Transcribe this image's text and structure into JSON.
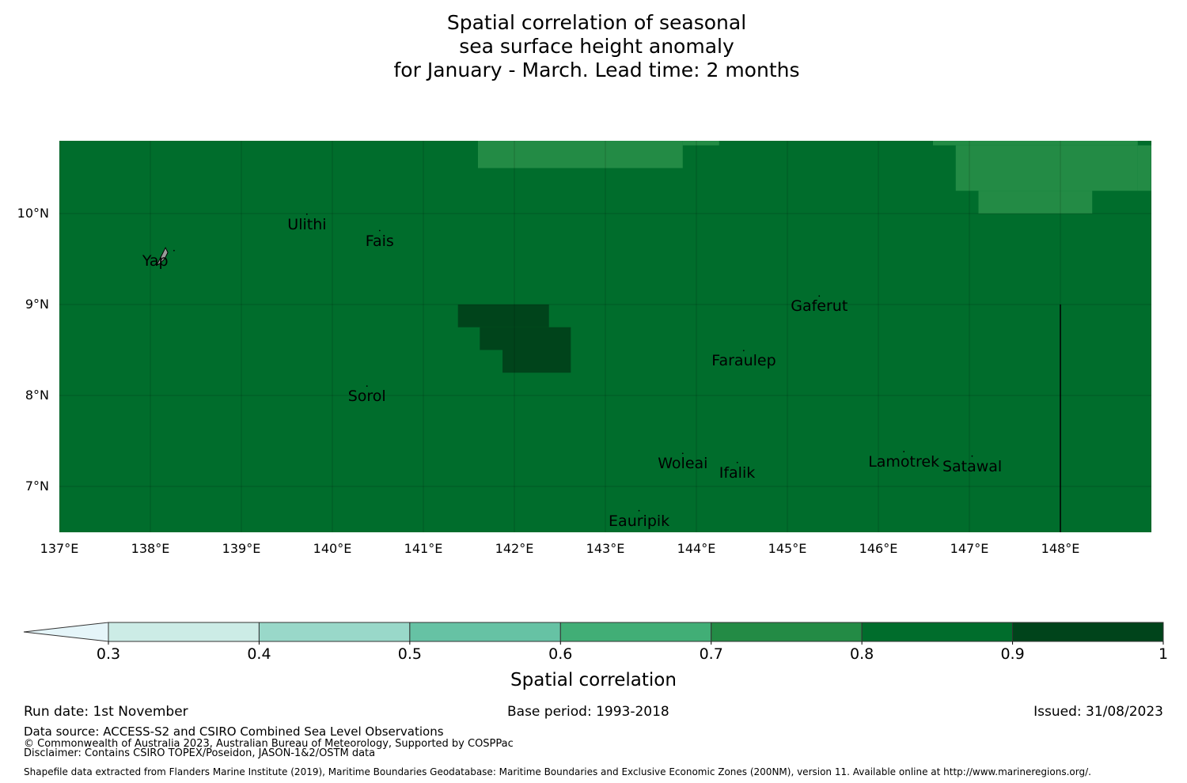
{
  "title": {
    "line1": "Spatial correlation of seasonal",
    "line2": "sea surface height anomaly",
    "line3": "for January - March. Lead time: 2 months"
  },
  "map": {
    "lon_range": [
      137,
      149
    ],
    "lat_range": [
      6.5,
      10.8
    ],
    "x_ticks": [
      "137°E",
      "138°E",
      "139°E",
      "140°E",
      "141°E",
      "142°E",
      "143°E",
      "144°E",
      "145°E",
      "146°E",
      "147°E",
      "148°E"
    ],
    "y_ticks": [
      "10°N",
      "9°N",
      "8°N",
      "7°N"
    ],
    "base_value": 0.85,
    "regions": [
      {
        "value": 0.75,
        "lon": [
          141.6,
          143.85
        ],
        "lat": [
          10.5,
          10.8
        ]
      },
      {
        "value": 0.75,
        "lon": [
          143.85,
          144.25
        ],
        "lat": [
          10.75,
          10.8
        ]
      },
      {
        "value": 0.75,
        "lon": [
          146.6,
          147.5
        ],
        "lat": [
          10.75,
          10.8
        ]
      },
      {
        "value": 0.75,
        "lon": [
          146.85,
          148.85
        ],
        "lat": [
          10.25,
          10.75
        ]
      },
      {
        "value": 0.75,
        "lon": [
          147.5,
          148.85
        ],
        "lat": [
          10.75,
          10.8
        ]
      },
      {
        "value": 0.75,
        "lon": [
          148.85,
          149.0
        ],
        "lat": [
          10.25,
          10.75
        ]
      },
      {
        "value": 0.75,
        "lon": [
          147.1,
          148.35
        ],
        "lat": [
          10.0,
          10.25
        ]
      },
      {
        "value": 0.95,
        "lon": [
          141.38,
          142.38
        ],
        "lat": [
          8.75,
          9.0
        ]
      },
      {
        "value": 0.95,
        "lon": [
          141.62,
          142.62
        ],
        "lat": [
          8.5,
          8.75
        ]
      },
      {
        "value": 0.95,
        "lon": [
          141.87,
          142.62
        ],
        "lat": [
          8.25,
          8.5
        ]
      }
    ],
    "boundary_line": {
      "lon": 148.0,
      "lat": [
        6.5,
        9.0
      ]
    },
    "places": [
      {
        "name": "Yap",
        "lon": 138.26,
        "lat": 9.48
      },
      {
        "name": "Ulithi",
        "lon": 139.72,
        "lat": 9.88
      },
      {
        "name": "Fais",
        "lon": 140.52,
        "lat": 9.7
      },
      {
        "name": "Gaferut",
        "lon": 145.35,
        "lat": 8.98
      },
      {
        "name": "Faraulep",
        "lon": 144.52,
        "lat": 8.38
      },
      {
        "name": "Sorol",
        "lon": 140.38,
        "lat": 7.99
      },
      {
        "name": "Woleai",
        "lon": 143.85,
        "lat": 7.25
      },
      {
        "name": "Ifalik",
        "lon": 144.45,
        "lat": 7.15
      },
      {
        "name": "Lamotrek",
        "lon": 146.28,
        "lat": 7.27
      },
      {
        "name": "Satawal",
        "lon": 147.03,
        "lat": 7.22
      },
      {
        "name": "Eauripik",
        "lon": 143.37,
        "lat": 6.62
      }
    ]
  },
  "colorbar": {
    "ticks": [
      "0.3",
      "0.4",
      "0.5",
      "0.6",
      "0.7",
      "0.8",
      "0.9",
      "1"
    ],
    "bins": [
      {
        "from": 0.3,
        "to": 0.4,
        "color": "#ccece6"
      },
      {
        "from": 0.4,
        "to": 0.5,
        "color": "#99d8c9"
      },
      {
        "from": 0.5,
        "to": 0.6,
        "color": "#66c2a4"
      },
      {
        "from": 0.6,
        "to": 0.7,
        "color": "#41ae76"
      },
      {
        "from": 0.7,
        "to": 0.8,
        "color": "#238b45"
      },
      {
        "from": 0.8,
        "to": 0.9,
        "color": "#006d2c"
      },
      {
        "from": 0.9,
        "to": 1.0,
        "color": "#00441b"
      }
    ],
    "under_color": "#e5f5f9",
    "label": "Spatial correlation"
  },
  "footer": {
    "run_date": "Run date: 1st November",
    "base_period": "Base period: 1993-2018",
    "issued": "Issued: 31/08/2023",
    "data_source": "Data source: ACCESS-S2 and CSIRO Combined Sea Level Observations",
    "copyright": "© Commonwealth of Australia 2023, Australian Bureau of Meteorology, Supported by COSPPac",
    "disclaimer": "Disclaimer: Contains CSIRO TOPEX/Poseidon, JASON-1&2/OSTM data",
    "shapefile": "Shapefile data extracted from Flanders Marine Institute (2019), Maritime Boundaries Geodatabase: Maritime Boundaries and Exclusive Economic Zones (200NM), version 11. Available online at http://www.marineregions.org/."
  }
}
